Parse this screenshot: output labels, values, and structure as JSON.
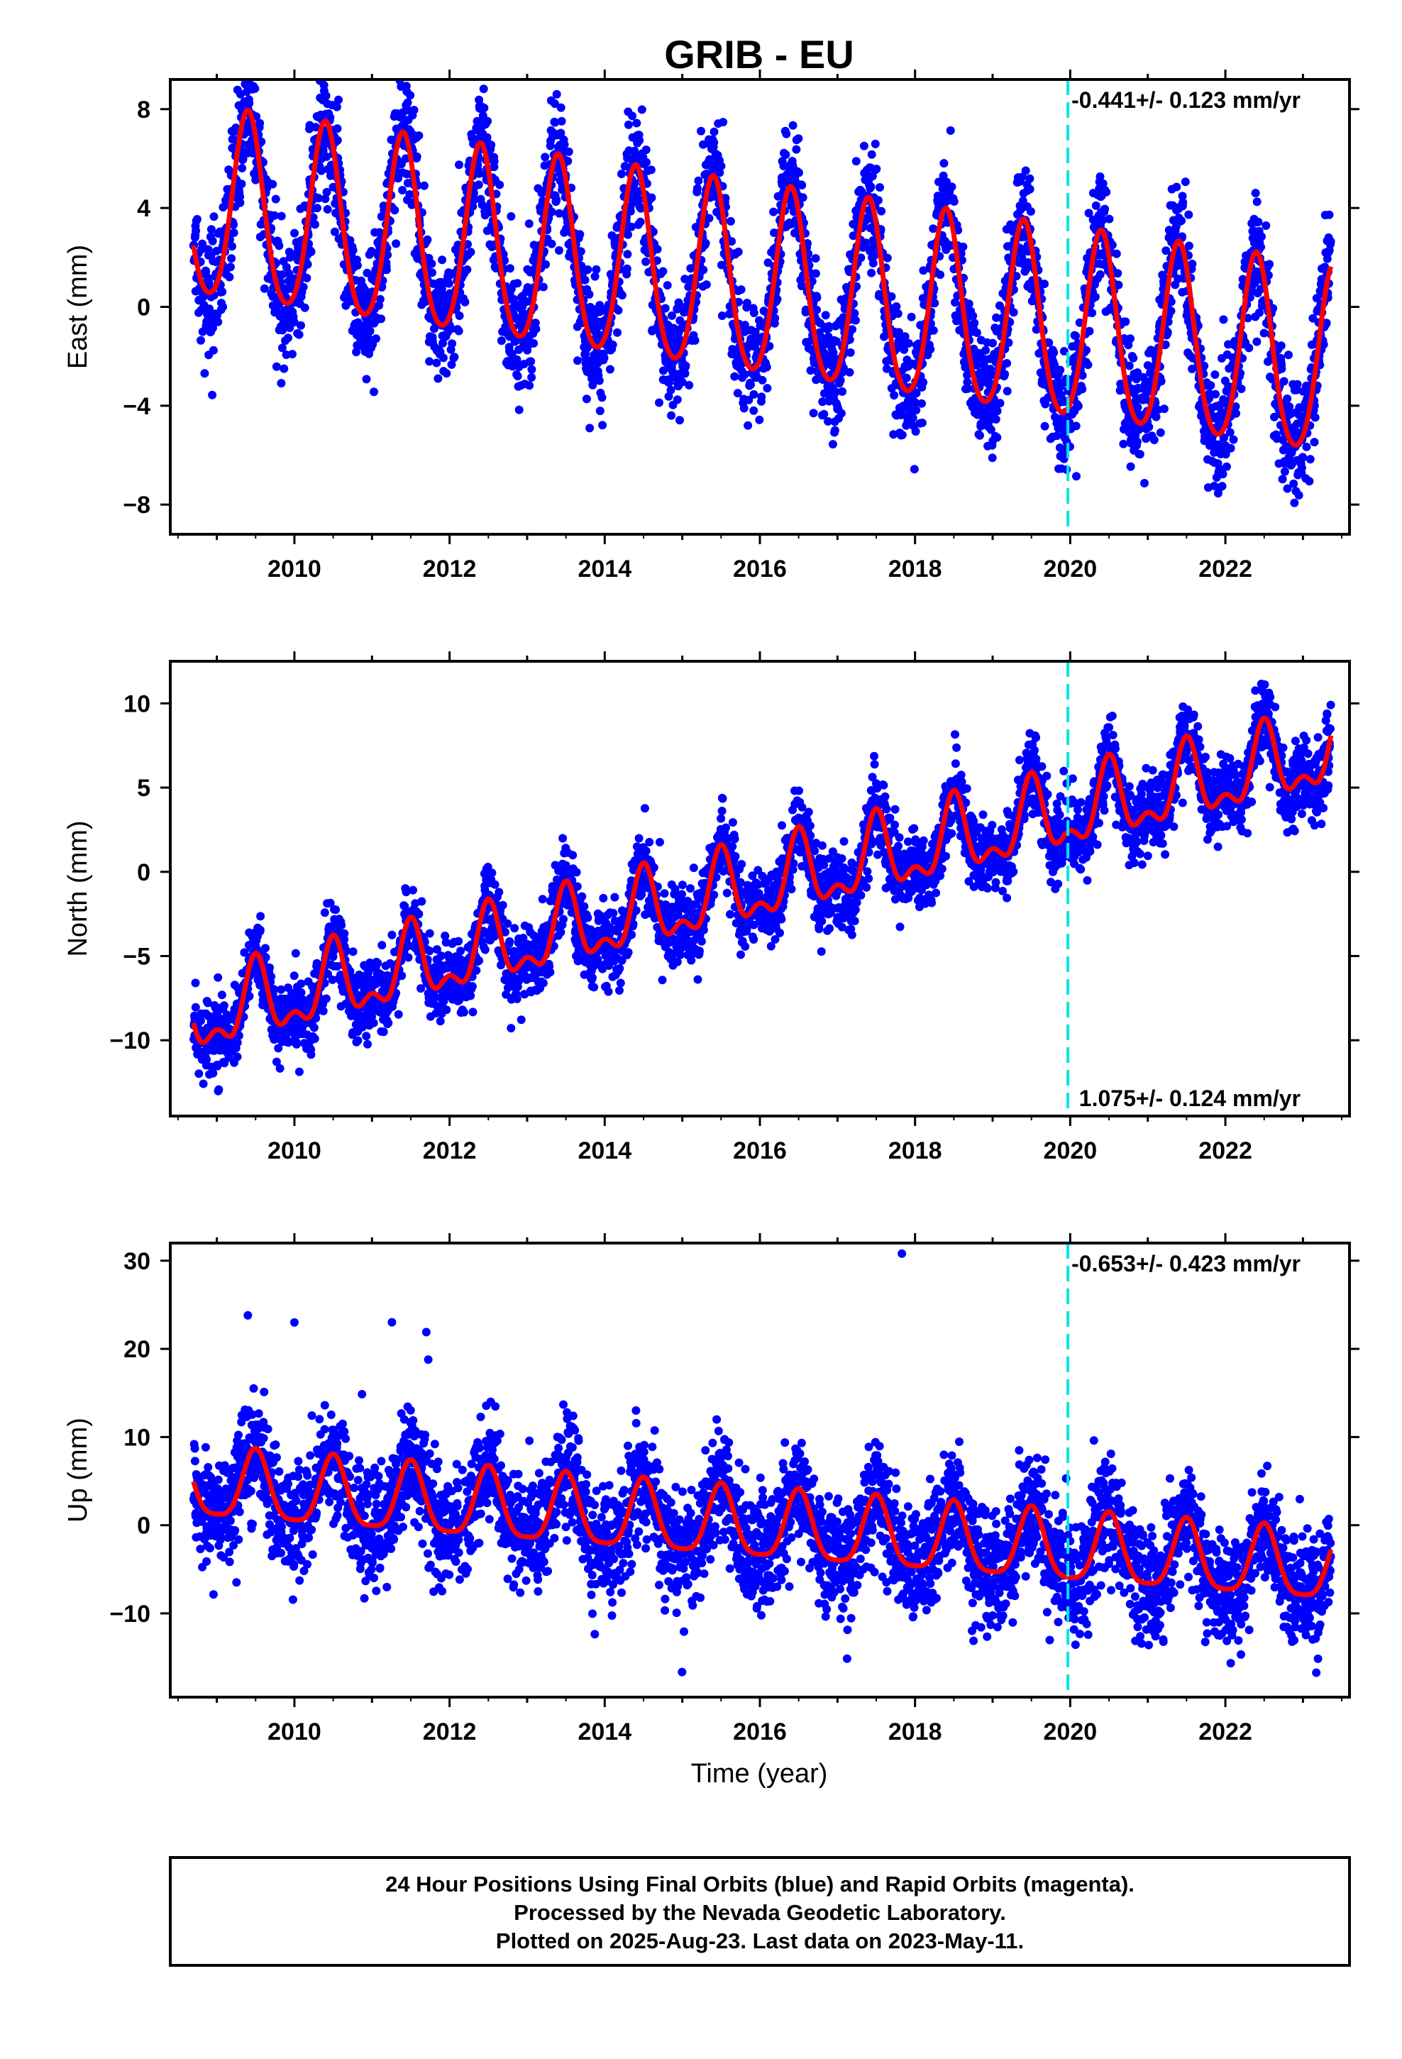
{
  "title": "GRIB - EU",
  "x_axis_label": "Time (year)",
  "footer": {
    "line1": "24 Hour Positions Using Final Orbits (blue) and Rapid Orbits (magenta).",
    "line2": "Processed by the Nevada Geodetic Laboratory.",
    "line3": "Plotted on 2025-Aug-23. Last data on 2023-May-11."
  },
  "colors": {
    "points": "#0000ff",
    "model": "#ff0000",
    "event_line": "#00e5e5",
    "frame": "#000000"
  },
  "chart_data": [
    {
      "type": "scatter",
      "panel": "east",
      "ylabel": "East (mm)",
      "xlim": [
        2008.4,
        2023.6
      ],
      "ylim": [
        -9.2,
        9.2
      ],
      "yticks": [
        -8,
        -4,
        0,
        4,
        8
      ],
      "ytick_labels": [
        "−8",
        "−4",
        "0",
        "4",
        "8"
      ],
      "xticks": [
        2010,
        2012,
        2014,
        2016,
        2018,
        2020,
        2022
      ],
      "event_line_x": 2019.97,
      "rate_text": "-0.441+/- 0.123 mm/yr",
      "rate_position": "top-right",
      "x_range": [
        2008.7,
        2023.36
      ],
      "model": {
        "offset": 0.8,
        "rate_mm_yr": -0.441,
        "t0": 2016.0,
        "annual_amp": 3.8,
        "annual_peak": 2009.4,
        "semiannual_amp": 0.45,
        "semiannual_peak": 2009.4
      },
      "scatter_sigma_mm": 1.2
    },
    {
      "type": "scatter",
      "panel": "north",
      "ylabel": "North (mm)",
      "xlim": [
        2008.4,
        2023.6
      ],
      "ylim": [
        -14.5,
        12.5
      ],
      "yticks": [
        -10,
        -5,
        0,
        5,
        10
      ],
      "ytick_labels": [
        "−10",
        "−5",
        "0",
        "5",
        "10"
      ],
      "xticks": [
        2010,
        2012,
        2014,
        2016,
        2018,
        2020,
        2022
      ],
      "event_line_x": 2019.97,
      "rate_text": "1.075+/- 0.124 mm/yr",
      "rate_position": "bottom-right",
      "x_range": [
        2008.7,
        2023.36
      ],
      "model": {
        "offset": -0.9,
        "rate_mm_yr": 1.075,
        "t0": 2016.0,
        "annual_amp": 2.0,
        "annual_peak": 2009.5,
        "semiannual_amp": 1.05,
        "semiannual_peak": 2009.5
      },
      "scatter_sigma_mm": 1.1
    },
    {
      "type": "scatter",
      "panel": "up",
      "ylabel": "Up (mm)",
      "xlim": [
        2008.4,
        2023.6
      ],
      "ylim": [
        -19.5,
        32
      ],
      "yticks": [
        -10,
        0,
        10,
        20,
        30
      ],
      "ytick_labels": [
        "−10",
        "0",
        "10",
        "20",
        "30"
      ],
      "xticks": [
        2010,
        2012,
        2014,
        2016,
        2018,
        2020,
        2022
      ],
      "event_line_x": 2019.97,
      "rate_text": "-0.653+/- 0.423 mm/yr",
      "rate_position": "top-right",
      "x_range": [
        2008.7,
        2023.36
      ],
      "model": {
        "offset": -0.3,
        "rate_mm_yr": -0.653,
        "t0": 2016.0,
        "annual_amp": 3.9,
        "annual_peak": 2009.5,
        "semiannual_amp": 0.9,
        "semiannual_peak": 2009.5
      },
      "scatter_sigma_mm": 3.2,
      "outliers": [
        [
          2017.83,
          30.8
        ],
        [
          2009.4,
          23.8
        ],
        [
          2010.0,
          23.0
        ],
        [
          2011.7,
          21.9
        ]
      ]
    }
  ]
}
